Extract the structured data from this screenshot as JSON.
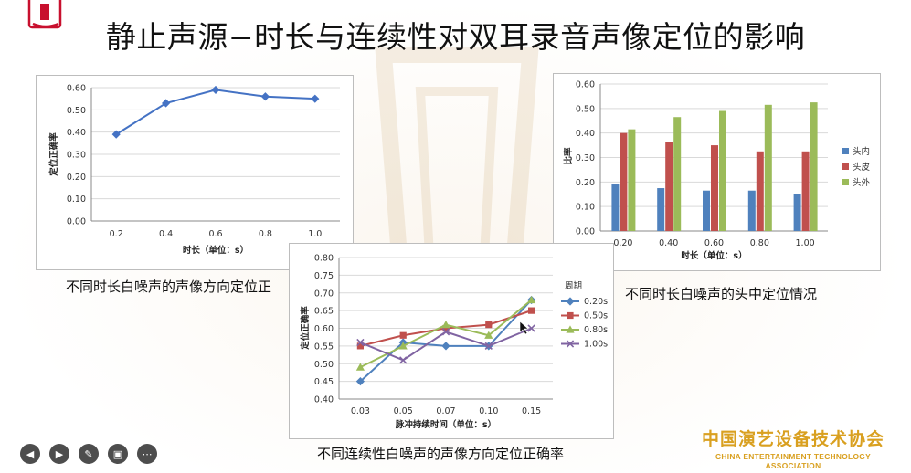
{
  "slide": {
    "title": "静止声源−时长与连续性对双耳录音声像定位的影响",
    "captions": {
      "chart1": "不同时长白噪声的声像方向定位正",
      "chart2": "不同时长白噪声的头中定位情况",
      "chart3": "不同连续性白噪声的声像方向定位正确率"
    },
    "org_name_cn": "中国演艺设备技术协会",
    "org_name_en": "CHINA ENTERTAINMENT TECHNOLOGY ASSOCIATION",
    "toolbar_icons": [
      "prev-icon",
      "play-icon",
      "pen-icon",
      "camera-icon",
      "more-icon"
    ]
  },
  "chart_data": [
    {
      "type": "line",
      "title": "",
      "xlabel": "时长（单位：s）",
      "ylabel": "定位正确率",
      "x": [
        "0.2",
        "0.4",
        "0.6",
        "0.8",
        "1.0"
      ],
      "series": [
        {
          "values": [
            0.39,
            0.53,
            0.59,
            0.56,
            0.55
          ],
          "color": "#4472c4"
        }
      ],
      "ylim": [
        0,
        0.6
      ],
      "yticks": [
        "0.00",
        "0.10",
        "0.20",
        "0.30",
        "0.40",
        "0.50",
        "0.60"
      ],
      "grid": true
    },
    {
      "type": "bar",
      "title": "",
      "xlabel": "时长（单位：s）",
      "ylabel": "比率",
      "categories": [
        "0.20",
        "0.40",
        "0.60",
        "0.80",
        "1.00"
      ],
      "series": [
        {
          "name": "头内",
          "values": [
            0.19,
            0.175,
            0.165,
            0.165,
            0.15
          ],
          "color": "#4f81bd"
        },
        {
          "name": "头皮",
          "values": [
            0.4,
            0.365,
            0.35,
            0.325,
            0.325
          ],
          "color": "#c0504d"
        },
        {
          "name": "头外",
          "values": [
            0.415,
            0.465,
            0.49,
            0.515,
            0.525
          ],
          "color": "#9bbb59"
        }
      ],
      "ylim": [
        0,
        0.6
      ],
      "yticks": [
        "0.00",
        "0.10",
        "0.20",
        "0.30",
        "0.40",
        "0.50",
        "0.60"
      ],
      "legend": "right",
      "grid": true
    },
    {
      "type": "line",
      "title": "",
      "xlabel": "脉冲持续时间（单位：s）",
      "ylabel": "定位正确率",
      "legend_title": "周期",
      "legend": "right",
      "x": [
        "0.03",
        "0.05",
        "0.07",
        "0.10",
        "0.15"
      ],
      "series": [
        {
          "name": "0.20s",
          "values": [
            0.45,
            0.56,
            0.55,
            0.55,
            0.68
          ],
          "color": "#4f81bd",
          "marker": "diamond"
        },
        {
          "name": "0.50s",
          "values": [
            0.55,
            0.58,
            0.6,
            0.61,
            0.65
          ],
          "color": "#c0504d",
          "marker": "square"
        },
        {
          "name": "0.80s",
          "values": [
            0.49,
            0.55,
            0.61,
            0.58,
            0.68
          ],
          "color": "#9bbb59",
          "marker": "triangle"
        },
        {
          "name": "1.00s",
          "values": [
            0.56,
            0.51,
            0.59,
            0.55,
            0.6
          ],
          "color": "#8064a2",
          "marker": "x"
        }
      ],
      "ylim": [
        0.4,
        0.8
      ],
      "yticks": [
        "0.40",
        "0.45",
        "0.50",
        "0.55",
        "0.60",
        "0.65",
        "0.70",
        "0.75",
        "0.80"
      ],
      "grid": true
    }
  ]
}
